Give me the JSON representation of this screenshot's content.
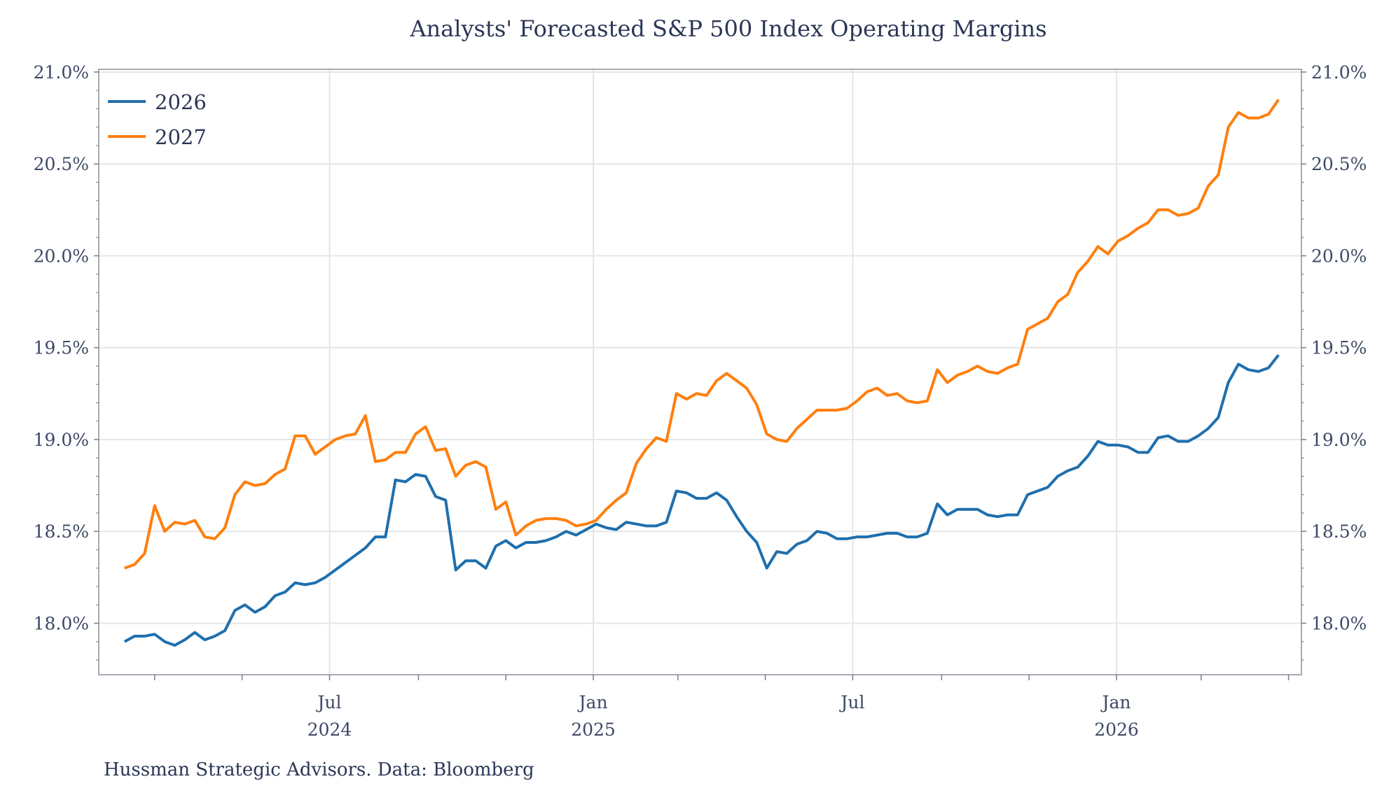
{
  "chart_data": {
    "type": "line",
    "title": "Analysts' Forecasted S&P 500 Index Operating Margins",
    "source": "Hussman Strategic Advisors. Data: Bloomberg",
    "xlabel": "",
    "ylabel": "",
    "ylim": [
      17.72,
      21.015
    ],
    "xlim": [
      "2024-01-22",
      "2026-05-10"
    ],
    "grid": true,
    "legend_position": "top-left",
    "y_ticks": [
      {
        "value": 18.0,
        "label": "18.0%"
      },
      {
        "value": 18.5,
        "label": "18.5%"
      },
      {
        "value": 19.0,
        "label": "19.0%"
      },
      {
        "value": 19.5,
        "label": "19.5%"
      },
      {
        "value": 20.0,
        "label": "20.0%"
      },
      {
        "value": 20.5,
        "label": "20.5%"
      },
      {
        "value": 21.0,
        "label": "21.0%"
      }
    ],
    "x_ticks": [
      {
        "date": "2024-07-01",
        "label": "Jul",
        "year": "2024"
      },
      {
        "date": "2025-01-01",
        "label": "Jan",
        "year": "2025"
      },
      {
        "date": "2025-07-01",
        "label": "Jul",
        "year": ""
      },
      {
        "date": "2026-01-01",
        "label": "Jan",
        "year": "2026"
      }
    ],
    "x_minor_ticks": [
      "2024-03-01",
      "2024-05-01",
      "2024-07-01",
      "2024-09-01",
      "2024-11-01",
      "2025-01-01",
      "2025-03-01",
      "2025-05-01",
      "2025-07-01",
      "2025-09-01",
      "2025-11-01",
      "2026-01-01",
      "2026-03-01",
      "2026-05-01"
    ],
    "x": [
      "2024-02-09",
      "2024-02-16",
      "2024-02-23",
      "2024-03-01",
      "2024-03-08",
      "2024-03-15",
      "2024-03-22",
      "2024-03-29",
      "2024-04-05",
      "2024-04-12",
      "2024-04-19",
      "2024-04-26",
      "2024-05-03",
      "2024-05-10",
      "2024-05-17",
      "2024-05-24",
      "2024-05-31",
      "2024-06-07",
      "2024-06-14",
      "2024-06-21",
      "2024-06-28",
      "2024-07-05",
      "2024-07-12",
      "2024-07-19",
      "2024-07-26",
      "2024-08-02",
      "2024-08-09",
      "2024-08-16",
      "2024-08-23",
      "2024-08-30",
      "2024-09-06",
      "2024-09-13",
      "2024-09-20",
      "2024-09-27",
      "2024-10-04",
      "2024-10-11",
      "2024-10-18",
      "2024-10-25",
      "2024-11-01",
      "2024-11-08",
      "2024-11-15",
      "2024-11-22",
      "2024-11-29",
      "2024-12-06",
      "2024-12-13",
      "2024-12-20",
      "2024-12-27",
      "2025-01-03",
      "2025-01-10",
      "2025-01-17",
      "2025-01-24",
      "2025-01-31",
      "2025-02-07",
      "2025-02-14",
      "2025-02-21",
      "2025-02-28",
      "2025-03-07",
      "2025-03-14",
      "2025-03-21",
      "2025-03-28",
      "2025-04-04",
      "2025-04-11",
      "2025-04-18",
      "2025-04-25",
      "2025-05-02",
      "2025-05-09",
      "2025-05-16",
      "2025-05-23",
      "2025-05-30",
      "2025-06-06",
      "2025-06-13",
      "2025-06-20",
      "2025-06-27",
      "2025-07-04",
      "2025-07-11",
      "2025-07-18",
      "2025-07-25",
      "2025-08-01",
      "2025-08-08",
      "2025-08-15",
      "2025-08-22",
      "2025-08-29",
      "2025-09-05",
      "2025-09-12",
      "2025-09-19",
      "2025-09-26",
      "2025-10-03",
      "2025-10-10",
      "2025-10-17",
      "2025-10-24",
      "2025-10-31",
      "2025-11-07",
      "2025-11-14",
      "2025-11-21",
      "2025-11-28",
      "2025-12-05",
      "2025-12-12",
      "2025-12-19",
      "2025-12-26",
      "2026-01-02",
      "2026-01-09",
      "2026-01-16",
      "2026-01-23",
      "2026-01-30",
      "2026-02-06",
      "2026-02-13",
      "2026-02-20",
      "2026-02-27",
      "2026-03-06",
      "2026-03-13",
      "2026-03-20",
      "2026-03-27",
      "2026-04-03",
      "2026-04-10",
      "2026-04-17",
      "2026-04-24"
    ],
    "series": [
      {
        "name": "2026",
        "color": "#1f6fad",
        "values": [
          17.9,
          17.93,
          17.93,
          17.94,
          17.9,
          17.88,
          17.91,
          17.95,
          17.91,
          17.93,
          17.96,
          18.07,
          18.1,
          18.06,
          18.09,
          18.15,
          18.17,
          18.22,
          18.21,
          18.22,
          18.25,
          18.29,
          18.33,
          18.37,
          18.41,
          18.47,
          18.47,
          18.78,
          18.77,
          18.81,
          18.8,
          18.69,
          18.67,
          18.29,
          18.34,
          18.34,
          18.3,
          18.42,
          18.45,
          18.41,
          18.44,
          18.44,
          18.45,
          18.47,
          18.5,
          18.48,
          18.51,
          18.54,
          18.52,
          18.51,
          18.55,
          18.54,
          18.53,
          18.53,
          18.55,
          18.72,
          18.71,
          18.68,
          18.68,
          18.71,
          18.67,
          18.58,
          18.5,
          18.44,
          18.3,
          18.39,
          18.38,
          18.43,
          18.45,
          18.5,
          18.49,
          18.46,
          18.46,
          18.47,
          18.47,
          18.48,
          18.49,
          18.49,
          18.47,
          18.47,
          18.49,
          18.65,
          18.59,
          18.62,
          18.62,
          18.62,
          18.59,
          18.58,
          18.59,
          18.59,
          18.7,
          18.72,
          18.74,
          18.8,
          18.83,
          18.85,
          18.91,
          18.99,
          18.97,
          18.97,
          18.96,
          18.93,
          18.93,
          19.01,
          19.02,
          18.99,
          18.99,
          19.02,
          19.06,
          19.12,
          19.31,
          19.41,
          19.38,
          19.37,
          19.39,
          19.46
        ]
      },
      {
        "name": "2027",
        "color": "#ff7f0e",
        "values": [
          18.3,
          18.32,
          18.38,
          18.64,
          18.5,
          18.55,
          18.54,
          18.56,
          18.47,
          18.46,
          18.52,
          18.7,
          18.77,
          18.75,
          18.76,
          18.81,
          18.84,
          19.02,
          19.02,
          18.92,
          18.96,
          19.0,
          19.02,
          19.03,
          19.13,
          18.88,
          18.89,
          18.93,
          18.93,
          19.03,
          19.07,
          18.94,
          18.95,
          18.8,
          18.86,
          18.88,
          18.85,
          18.62,
          18.66,
          18.48,
          18.53,
          18.56,
          18.57,
          18.57,
          18.56,
          18.53,
          18.54,
          18.56,
          18.62,
          18.67,
          18.71,
          18.87,
          18.95,
          19.01,
          18.99,
          19.25,
          19.22,
          19.25,
          19.24,
          19.32,
          19.36,
          19.32,
          19.28,
          19.19,
          19.03,
          19.0,
          18.99,
          19.06,
          19.11,
          19.16,
          19.16,
          19.16,
          19.17,
          19.21,
          19.26,
          19.28,
          19.24,
          19.25,
          19.21,
          19.2,
          19.21,
          19.38,
          19.31,
          19.35,
          19.37,
          19.4,
          19.37,
          19.36,
          19.39,
          19.41,
          19.6,
          19.63,
          19.66,
          19.75,
          19.79,
          19.91,
          19.97,
          20.05,
          20.01,
          20.08,
          20.11,
          20.15,
          20.18,
          20.25,
          20.25,
          20.22,
          20.23,
          20.26,
          20.38,
          20.44,
          20.7,
          20.78,
          20.75,
          20.75,
          20.77,
          20.85
        ]
      }
    ],
    "colors": {
      "text": "#2b3656",
      "axis": "#7a7f8c",
      "grid": "#e6e6e6"
    }
  }
}
